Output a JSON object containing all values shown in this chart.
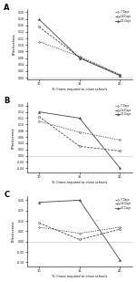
{
  "x": [
    10,
    15,
    20
  ],
  "panel_A": {
    "label": "A",
    "ylabel": "Effectiveness",
    "xlabel": "% Illness required to close schools",
    "ylim": [
      -0.005,
      0.21
    ],
    "yticks": [
      0,
      0.02,
      0.04,
      0.06,
      0.08,
      0.1,
      0.12,
      0.14,
      0.16,
      0.18,
      0.2
    ],
    "lines": {
      "7 Days": {
        "y": [
          0.11,
          0.065,
          0.01
        ],
        "style": "dotted"
      },
      "14 Days": {
        "y": [
          0.155,
          0.062,
          0.008
        ],
        "style": "dashed"
      },
      "21 Days": {
        "y": [
          0.178,
          0.06,
          0.006
        ],
        "style": "solid"
      }
    }
  },
  "panel_B": {
    "label": "B",
    "ylabel": "Effectiveness",
    "xlabel": "% Illness required to close schools",
    "ylim": [
      -0.055,
      0.17
    ],
    "yticks": [
      -0.04,
      -0.02,
      0,
      0.02,
      0.04,
      0.06,
      0.08,
      0.1,
      0.12,
      0.14,
      0.16
    ],
    "lines": {
      "7 Days": {
        "y": [
          0.11,
          0.075,
          0.05
        ],
        "style": "dotted"
      },
      "14 Days": {
        "y": [
          0.125,
          0.03,
          0.015
        ],
        "style": "dashed"
      },
      "21 Days": {
        "y": [
          0.14,
          0.12,
          -0.04
        ],
        "style": "solid"
      }
    }
  },
  "panel_C": {
    "label": "C",
    "ylabel": "Effectiveness",
    "xlabel": "% Illness required to close schools",
    "ylim": [
      -0.12,
      0.22
    ],
    "yticks": [
      -0.1,
      -0.05,
      0,
      0.05,
      0.1,
      0.15,
      0.2
    ],
    "lines": {
      "7 Days": {
        "y": [
          0.07,
          0.04,
          0.07
        ],
        "style": "dotted"
      },
      "14 Days": {
        "y": [
          0.09,
          0.01,
          0.06
        ],
        "style": "dashed"
      },
      "21 Days": {
        "y": [
          0.19,
          0.2,
          -0.09
        ],
        "style": "solid"
      }
    }
  },
  "line_color": "#444444",
  "background_color": "#ffffff",
  "zero_line_color": "#bbbbbb",
  "legend_labels": [
    "7 Days",
    "14 Days",
    "21 Days"
  ]
}
